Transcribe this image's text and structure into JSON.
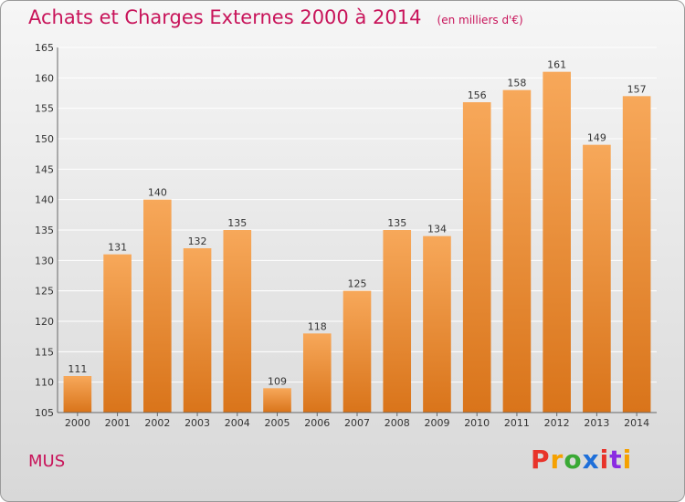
{
  "header": {
    "title": "Achats et Charges Externes 2000 à 2014",
    "unit": "(en milliers d'€)"
  },
  "footer": {
    "commune": "MUS",
    "logo": "Proxiti",
    "logo_colors": [
      "#e8332a",
      "#f5a100",
      "#3aa935",
      "#1e6fd9",
      "#e8332a",
      "#8a2be2",
      "#f5a100"
    ]
  },
  "colors": {
    "bar_top": "#f7a85a",
    "bar_bottom": "#d9741a",
    "grid": "#ffffff",
    "axis": "#666666"
  },
  "chart_data": {
    "type": "bar",
    "categories": [
      "2000",
      "2001",
      "2002",
      "2003",
      "2004",
      "2005",
      "2006",
      "2007",
      "2008",
      "2009",
      "2010",
      "2011",
      "2012",
      "2013",
      "2014"
    ],
    "values": [
      111,
      131,
      140,
      132,
      135,
      109,
      118,
      125,
      135,
      134,
      156,
      158,
      161,
      149,
      157
    ],
    "ylim": [
      105,
      165
    ],
    "yticks": [
      105,
      110,
      115,
      120,
      125,
      130,
      135,
      140,
      145,
      150,
      155,
      160,
      165
    ],
    "grid": true,
    "xlabel": "",
    "ylabel": ""
  }
}
